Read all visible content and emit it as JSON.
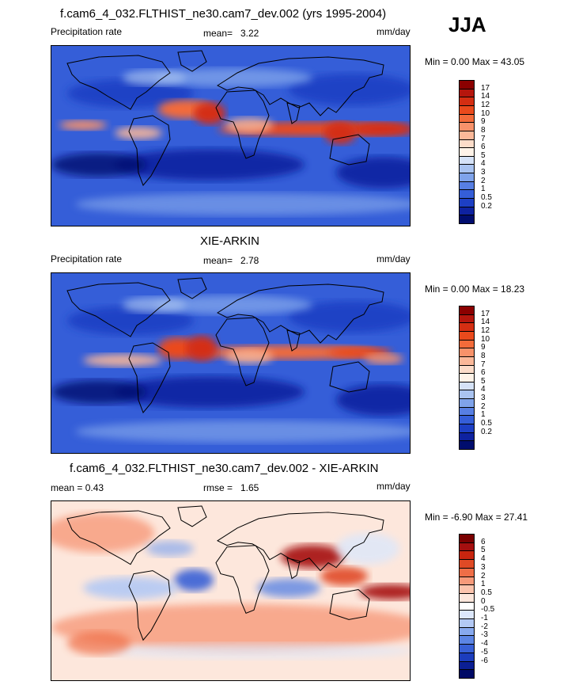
{
  "season": "JJA",
  "panels": [
    {
      "title": "f.cam6_4_032.FLTHIST_ne30.cam7_dev.002 (yrs 1995-2004)",
      "left_label": "Precipitation rate",
      "mean_label": "mean=",
      "mean_value": "3.22",
      "units": "mm/day",
      "minmax": "Min =   0.00 Max =  43.05",
      "colorbar_labels": [
        "17",
        "14",
        "12",
        "10",
        "9",
        "8",
        "7",
        "6",
        "5",
        "4",
        "3",
        "2",
        "1",
        "0.5",
        "0.2"
      ],
      "colorbar_colors": [
        "#8b0000",
        "#b5160d",
        "#d42e12",
        "#ea4a1c",
        "#f36b3a",
        "#f8926a",
        "#fbb899",
        "#fcdcc9",
        "#fff3e8",
        "#d5e2f7",
        "#a9c3f0",
        "#7fa3ea",
        "#577fe3",
        "#355ed8",
        "#1d3fc4",
        "#0e22a0",
        "#000d6e"
      ],
      "map_style": "model"
    },
    {
      "title": "XIE-ARKIN",
      "left_label": "Precipitation rate",
      "mean_label": "mean=",
      "mean_value": "2.78",
      "units": "mm/day",
      "minmax": "Min =   0.00 Max =  18.23",
      "colorbar_labels": [
        "17",
        "14",
        "12",
        "10",
        "9",
        "8",
        "7",
        "6",
        "5",
        "4",
        "3",
        "2",
        "1",
        "0.5",
        "0.2"
      ],
      "colorbar_colors": [
        "#8b0000",
        "#b5160d",
        "#d42e12",
        "#ea4a1c",
        "#f36b3a",
        "#f8926a",
        "#fbb899",
        "#fcdcc9",
        "#fff3e8",
        "#d5e2f7",
        "#a9c3f0",
        "#7fa3ea",
        "#577fe3",
        "#355ed8",
        "#1d3fc4",
        "#0e22a0",
        "#000d6e"
      ],
      "map_style": "obs"
    },
    {
      "title": "f.cam6_4_032.FLTHIST_ne30.cam7_dev.002 - XIE-ARKIN",
      "left_label": "mean =   0.43",
      "mean_label": "rmse =",
      "mean_value": "1.65",
      "units": "mm/day",
      "minmax": "Min =  -6.90 Max =  27.41",
      "colorbar_labels": [
        "6",
        "5",
        "4",
        "3",
        "2",
        "1",
        "0.5",
        "0",
        "-0.5",
        "-1",
        "-2",
        "-3",
        "-4",
        "-5",
        "-6"
      ],
      "colorbar_colors": [
        "#7a0000",
        "#a50f0f",
        "#c8250f",
        "#e04a25",
        "#ef6e47",
        "#f79a7a",
        "#fcc4ad",
        "#fde7dc",
        "#ffffff",
        "#dce7fb",
        "#b3c9f4",
        "#87a9ee",
        "#5c85e4",
        "#3860d6",
        "#1c3dbd",
        "#0b1f94",
        "#000a66"
      ],
      "map_style": "diff"
    }
  ]
}
